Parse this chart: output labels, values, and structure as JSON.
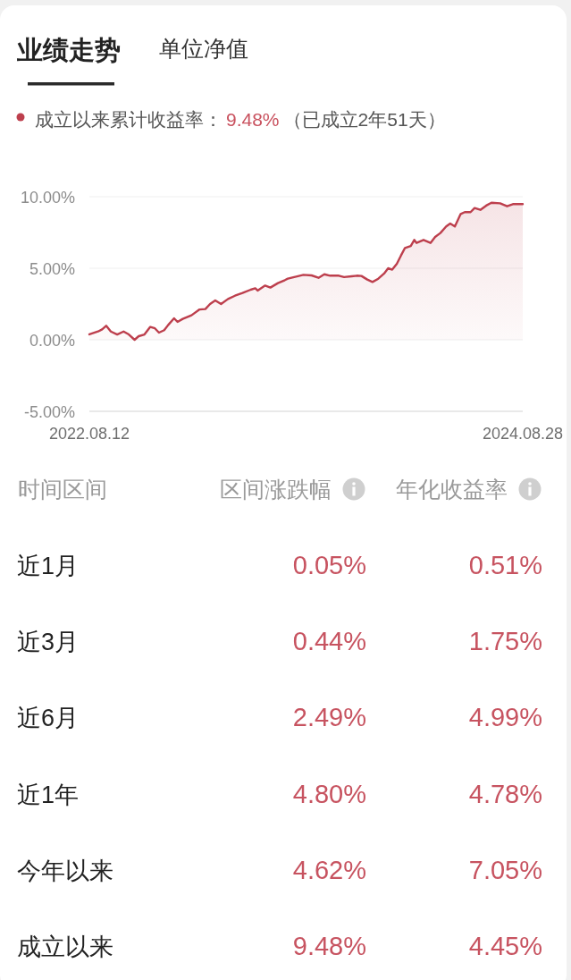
{
  "chart_data": [
    {
      "type": "area",
      "title": "业绩走势",
      "subtitle": "单位净值",
      "legend": "top left",
      "grid": "y",
      "annotations": [
        "9.48%",
        "（已成立2年51天）"
      ],
      "x": [
        "2022-08-12",
        "2022-08-27",
        "2022-09-03",
        "2022-09-10",
        "2022-09-18",
        "2022-09-29",
        "2022-10-10",
        "2022-10-19",
        "2022-10-29",
        "2022-11-05",
        "2022-11-15",
        "2022-11-25",
        "2022-12-03",
        "2022-12-10",
        "2022-12-19",
        "2022-12-26",
        "2023-01-05",
        "2023-01-11",
        "2023-01-20",
        "2023-02-04",
        "2023-02-18",
        "2023-02-28",
        "2023-03-08",
        "2023-03-17",
        "2023-03-27",
        "2023-04-08",
        "2023-04-20",
        "2023-05-03",
        "2023-05-17",
        "2023-05-25",
        "2023-05-29",
        "2023-06-11",
        "2023-06-20",
        "2023-07-03",
        "2023-07-15",
        "2023-07-20",
        "2023-08-16",
        "2023-08-30",
        "2023-09-11",
        "2023-09-21",
        "2023-10-01",
        "2023-10-16",
        "2023-10-25",
        "2023-11-07",
        "2023-11-16",
        "2023-11-24",
        "2023-12-04",
        "2023-12-13",
        "2023-12-23",
        "2024-01-02",
        "2024-01-09",
        "2024-01-16",
        "2024-01-24",
        "2024-01-31",
        "2024-02-07",
        "2024-02-17",
        "2024-02-23",
        "2024-02-27",
        "2024-03-10",
        "2024-03-22",
        "2024-03-30",
        "2024-04-08",
        "2024-04-18",
        "2024-04-25",
        "2024-05-03",
        "2024-05-13",
        "2024-05-20",
        "2024-05-30",
        "2024-06-06",
        "2024-06-16",
        "2024-06-26",
        "2024-07-05",
        "2024-07-20",
        "2024-08-01",
        "2024-08-11",
        "2024-08-28"
      ],
      "series": [
        {
          "name": "成立以来累计收益率：",
          "color": "#bd3f4d",
          "values": [
            0.38,
            0.58,
            0.73,
            0.98,
            0.58,
            0.37,
            0.58,
            0.37,
            0.0,
            0.25,
            0.37,
            0.9,
            0.8,
            0.5,
            0.67,
            1.04,
            1.5,
            1.25,
            1.46,
            1.71,
            2.12,
            2.15,
            2.5,
            2.75,
            2.5,
            2.85,
            3.08,
            3.27,
            3.5,
            3.6,
            3.44,
            3.79,
            3.65,
            3.96,
            4.17,
            4.27,
            4.54,
            4.5,
            4.33,
            4.58,
            4.48,
            4.48,
            4.38,
            4.44,
            4.48,
            4.46,
            4.21,
            4.04,
            4.27,
            4.63,
            5.0,
            4.9,
            5.31,
            5.88,
            6.42,
            6.56,
            6.98,
            6.77,
            6.98,
            6.77,
            7.19,
            7.46,
            7.92,
            8.13,
            7.92,
            8.79,
            8.92,
            8.92,
            9.21,
            9.08,
            9.38,
            9.58,
            9.54,
            9.33,
            9.48,
            9.48
          ]
        }
      ],
      "xlim": [
        "2022-08-12",
        "2024-08-28"
      ],
      "xticks": [
        {
          "value": "2022-08-12",
          "label": "2022.08.12"
        },
        {
          "value": "2024-08-28",
          "label": "2024.08.28"
        }
      ],
      "ylim": [
        -5,
        10
      ],
      "yticks": [
        {
          "value": -5,
          "label": "-5.00%"
        },
        {
          "value": 0,
          "label": "0.00%"
        },
        {
          "value": 5,
          "label": "5.00%"
        },
        {
          "value": 10,
          "label": "10.00%"
        }
      ]
    },
    {
      "type": "other",
      "xlabel": "时间区间",
      "annotations": [
        "区间涨跌幅",
        "年化收益率"
      ],
      "categories": [
        "近1月",
        "近3月",
        "近6月",
        "近1年",
        "今年以来",
        "成立以来"
      ],
      "series": [
        {
          "color": "#c75360",
          "values": [
            0.05,
            0.44,
            2.49,
            4.8,
            4.62,
            9.48
          ],
          "value_labels": [
            "0.05%",
            "0.44%",
            "2.49%",
            "4.80%",
            "4.62%",
            "9.48%"
          ]
        },
        {
          "color": "#c75360",
          "values": [
            0.51,
            1.75,
            4.99,
            4.78,
            7.05,
            4.45
          ],
          "value_labels": [
            "0.51%",
            "1.75%",
            "4.99%",
            "4.78%",
            "7.05%",
            "4.45%"
          ]
        }
      ]
    }
  ]
}
